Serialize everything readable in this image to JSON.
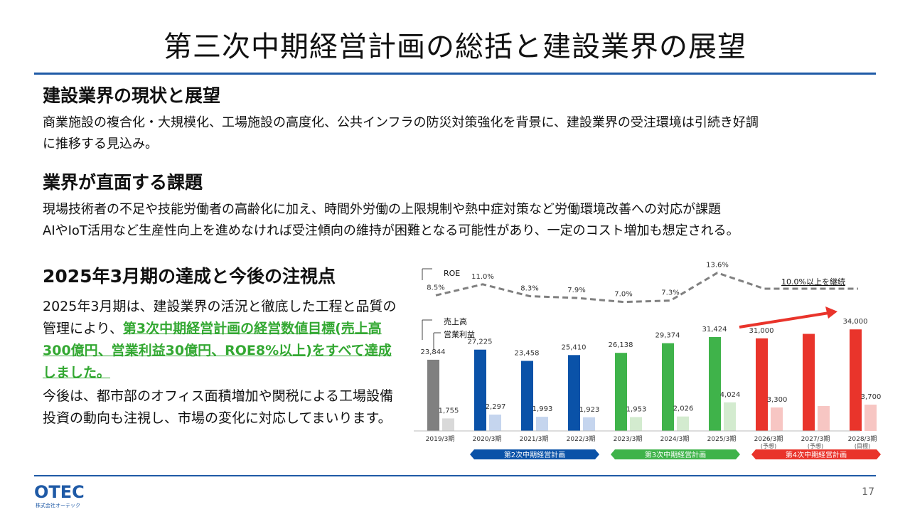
{
  "header": {
    "title": "第三次中期経営計画の総括と建設業界の展望"
  },
  "section1": {
    "heading": "建設業界の現状と展望",
    "line1": "商業施設の複合化・大規模化、工場施設の高度化、公共インフラの防災対策強化を背景に、建設業界の受注環境は引続き好調",
    "line2": "に推移する見込み。"
  },
  "section2": {
    "heading": "業界が直面する課題",
    "line1": "現場技術者の不足や技能労働者の高齢化に加え、時間外労働の上限規制や熱中症対策など労働環境改善への対応が課題",
    "line2": "AIやIoT活用など生産性向上を進めなければ受注傾向の維持が困難となる可能性があり、一定のコスト増加も想定される。"
  },
  "section3": {
    "heading": "2025年3月期の達成と今後の注視点",
    "p1_plain": "2025年3月期は、建設業界の活況と徹底した工程と品質の管理により、",
    "p1_highlight": "第3次中期経営計画の経営数値目標(売上高300億円、営業利益30億円、ROE8%以上)をすべて達成しました。",
    "p2": "今後は、都市部のオフィス面積増加や関税による工場設備投資の動向も注視し、市場の変化に対応してまいります。"
  },
  "footer": {
    "page_number": "17",
    "logo_text": "OTEC",
    "logo_sub": "株式会社オーテック"
  },
  "colors": {
    "accent_blue": "#1f5aa6",
    "gray_bar": "#808080",
    "gray_light": "#d9d9d9",
    "blue_bar": "#0a52a8",
    "blue_light": "#c5d5ee",
    "green_bar": "#3fb34a",
    "green_light": "#d3ebcf",
    "red_bar": "#e9342b",
    "red_light": "#f7c6c3",
    "roe_line": "#808080",
    "highlight_green": "#33a832"
  },
  "chart_data": {
    "type": "bar",
    "categories": [
      "2019/3期",
      "2020/3期",
      "2021/3期",
      "2022/3期",
      "2023/3期",
      "2024/3期",
      "2025/3期",
      "2026/3期",
      "2027/3期",
      "2028/3期"
    ],
    "category_notes": [
      "",
      "",
      "",
      "",
      "",
      "",
      "",
      "(予想)",
      "(予想)",
      "(目標)"
    ],
    "series": [
      {
        "name": "売上高",
        "values": [
          23844,
          27225,
          23458,
          25410,
          26138,
          29374,
          31424,
          31000,
          null,
          34000
        ]
      },
      {
        "name": "営業利益",
        "values": [
          1755,
          2297,
          1993,
          1923,
          1953,
          2026,
          4024,
          3300,
          null,
          3700
        ]
      }
    ],
    "bar_value_labels": {
      "sales": [
        "23,844",
        "27,225",
        "23,458",
        "25,410",
        "26,138",
        "29,374",
        "31,424",
        "31,000",
        "",
        "34,000"
      ],
      "profit": [
        "1,755",
        "2,297",
        "1,993",
        "1,923",
        "1,953",
        "2,026",
        "4,024",
        "3,300",
        "",
        "3,700"
      ]
    },
    "estimated_unlabeled": {
      "sales_2027": 32500,
      "profit_2027": 3500
    },
    "roe": {
      "name": "ROE",
      "values": [
        8.5,
        11.0,
        8.3,
        7.9,
        7.0,
        7.3,
        13.6,
        10.0,
        10.0,
        10.0
      ],
      "labels": [
        "8.5%",
        "11.0%",
        "8.3%",
        "7.9%",
        "7.0%",
        "7.3%",
        "13.6%",
        "",
        "",
        ""
      ],
      "target_label": "10.0%以上を継続"
    },
    "legend": {
      "roe": "ROE",
      "sales": "売上高",
      "profit": "営業利益"
    },
    "plans": [
      {
        "label": "第2次中期経営計画",
        "from": 1,
        "to": 3,
        "color": "#0a52a8"
      },
      {
        "label": "第3次中期経営計画",
        "from": 4,
        "to": 6,
        "color": "#3fb34a"
      },
      {
        "label": "第4次中期経営計画",
        "from": 7,
        "to": 9,
        "color": "#e9342b"
      }
    ]
  }
}
